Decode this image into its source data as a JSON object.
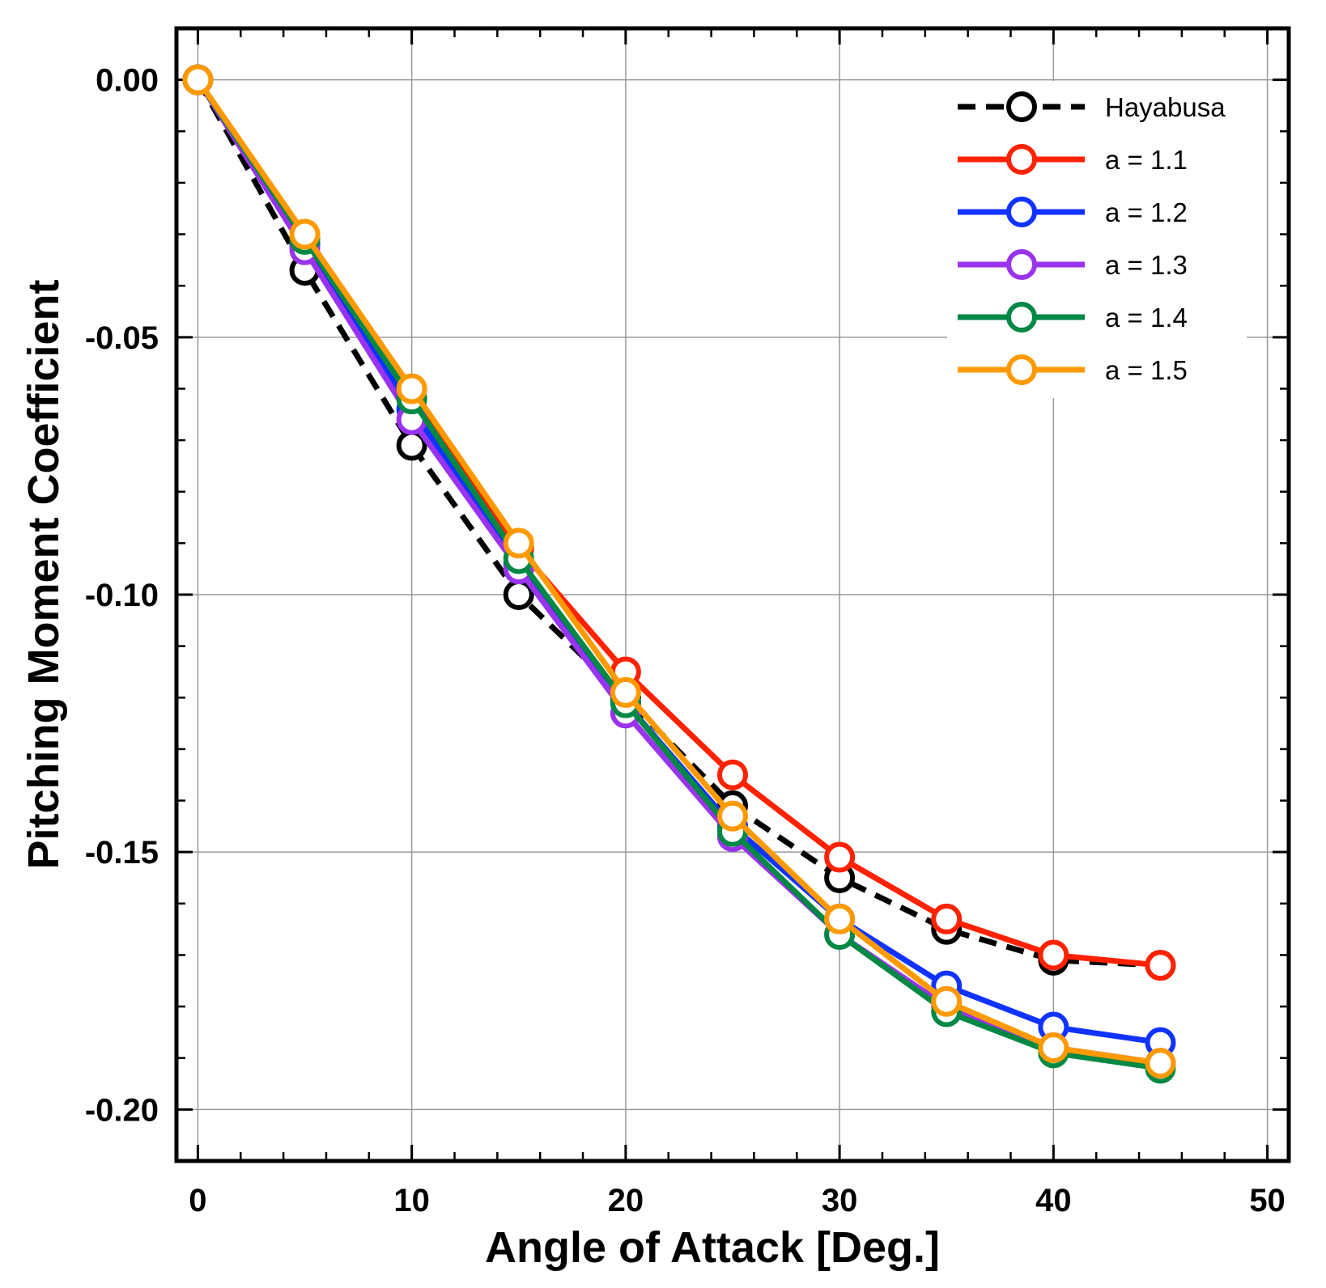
{
  "chart_data": {
    "type": "line",
    "title": "",
    "xlabel": "Angle of Attack [Deg.]",
    "ylabel": "Pitching Moment Coefficient",
    "xlim": [
      -1,
      51
    ],
    "ylim": [
      -0.21,
      0.01
    ],
    "x_ticks": [
      0,
      10,
      20,
      30,
      40,
      50
    ],
    "x_tick_labels": [
      "0",
      "10",
      "20",
      "30",
      "40",
      "50"
    ],
    "y_ticks": [
      0.0,
      -0.05,
      -0.1,
      -0.15,
      -0.2
    ],
    "y_tick_labels": [
      "0.00",
      "-0.05",
      "-0.10",
      "-0.15",
      "-0.20"
    ],
    "grid": true,
    "legend_position": "top-right",
    "x": [
      0,
      5,
      10,
      15,
      20,
      25,
      30,
      35,
      40,
      45
    ],
    "series": [
      {
        "name": "Hayabusa",
        "color": "#000000",
        "dashed": true,
        "values": [
          0.0,
          -0.037,
          -0.071,
          -0.1,
          -0.12,
          -0.141,
          -0.155,
          -0.165,
          -0.171,
          -0.172
        ]
      },
      {
        "name": "a = 1.1",
        "color": "#ff2200",
        "dashed": false,
        "values": [
          0.0,
          -0.032,
          -0.062,
          -0.091,
          -0.115,
          -0.135,
          -0.151,
          -0.163,
          -0.17,
          -0.172
        ]
      },
      {
        "name": "a = 1.2",
        "color": "#1133ff",
        "dashed": false,
        "values": [
          0.0,
          -0.032,
          -0.064,
          -0.094,
          -0.121,
          -0.145,
          -0.163,
          -0.176,
          -0.184,
          -0.187
        ]
      },
      {
        "name": "a = 1.3",
        "color": "#9933ee",
        "dashed": false,
        "values": [
          0.0,
          -0.033,
          -0.066,
          -0.095,
          -0.123,
          -0.147,
          -0.166,
          -0.18,
          -0.188,
          -0.191
        ]
      },
      {
        "name": "a = 1.4",
        "color": "#008844",
        "dashed": false,
        "values": [
          0.0,
          -0.031,
          -0.062,
          -0.093,
          -0.121,
          -0.146,
          -0.166,
          -0.181,
          -0.189,
          -0.192
        ]
      },
      {
        "name": "a = 1.5",
        "color": "#ff9900",
        "dashed": false,
        "values": [
          0.0,
          -0.03,
          -0.06,
          -0.09,
          -0.119,
          -0.143,
          -0.163,
          -0.179,
          -0.188,
          -0.191
        ]
      }
    ]
  }
}
